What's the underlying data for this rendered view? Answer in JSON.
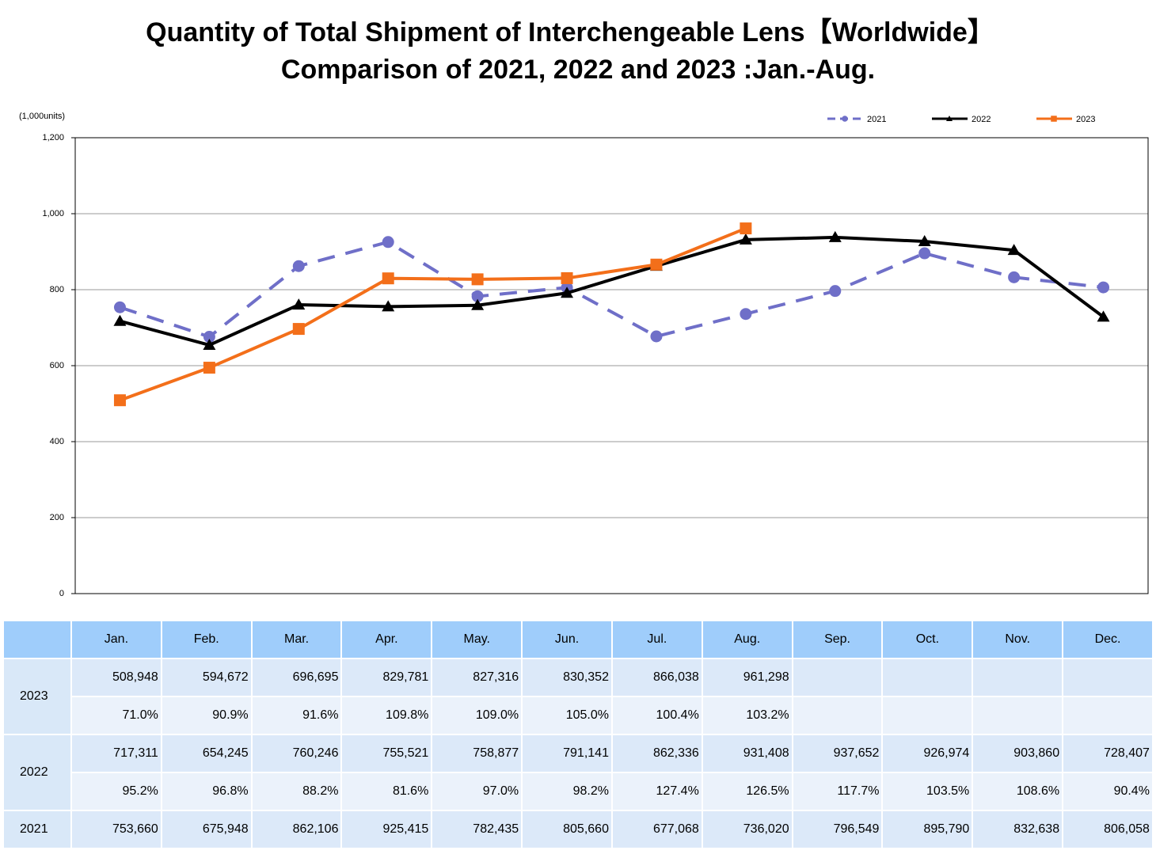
{
  "chart_data": {
    "type": "line",
    "title": "Quantity of Total Shipment of Interchengeable Lens【Worldwide】",
    "subtitle": "Comparison of 2021, 2022 and 2023 :Jan.-Aug.",
    "y_label": "(1,000units)",
    "categories": [
      "Jan.",
      "Feb.",
      "Mar.",
      "Apr.",
      "May.",
      "Jun.",
      "Jul.",
      "Aug.",
      "Sep.",
      "Oct.",
      "Nov.",
      "Dec."
    ],
    "series": [
      {
        "name": "2021",
        "color": "#6f6fc8",
        "dash": true,
        "marker": "circle",
        "values": [
          753.66,
          675.948,
          862.106,
          925.415,
          782.435,
          805.66,
          677.068,
          736.02,
          796.549,
          895.79,
          832.638,
          806.058
        ]
      },
      {
        "name": "2022",
        "color": "#000000",
        "dash": false,
        "marker": "triangle",
        "values": [
          717.311,
          654.245,
          760.246,
          755.521,
          758.877,
          791.141,
          862.336,
          931.408,
          937.652,
          926.974,
          903.86,
          728.407
        ]
      },
      {
        "name": "2023",
        "color": "#f36f1a",
        "dash": false,
        "marker": "square",
        "values": [
          508.948,
          594.672,
          696.695,
          829.781,
          827.316,
          830.352,
          866.038,
          961.298,
          null,
          null,
          null,
          null
        ]
      }
    ],
    "ylim": [
      0,
      1200
    ],
    "yticks": [
      0,
      200,
      400,
      600,
      800,
      {
        "value": 1000,
        "label": "1,000"
      },
      {
        "value": 1200,
        "label": "1,200"
      }
    ],
    "grid": true,
    "legend": "top-right"
  },
  "table": {
    "rows": [
      {
        "label": "2023",
        "values": [
          "508,948",
          "594,672",
          "696,695",
          "829,781",
          "827,316",
          "830,352",
          "866,038",
          "961,298"
        ],
        "ratios": [
          "71.0%",
          "90.9%",
          "91.6%",
          "109.8%",
          "109.0%",
          "105.0%",
          "100.4%",
          "103.2%"
        ]
      },
      {
        "label": "2022",
        "values": [
          "717,311",
          "654,245",
          "760,246",
          "755,521",
          "758,877",
          "791,141",
          "862,336",
          "931,408",
          "937,652",
          "926,974",
          "903,860",
          "728,407"
        ],
        "ratios": [
          "95.2%",
          "96.8%",
          "88.2%",
          "81.6%",
          "97.0%",
          "98.2%",
          "127.4%",
          "126.5%",
          "117.7%",
          "103.5%",
          "108.6%",
          "90.4%"
        ]
      },
      {
        "label": "2021",
        "values": [
          "753,660",
          "675,948",
          "862,106",
          "925,415",
          "782,435",
          "805,660",
          "677,068",
          "736,020",
          "796,549",
          "895,790",
          "832,638",
          "806,058"
        ]
      }
    ]
  }
}
